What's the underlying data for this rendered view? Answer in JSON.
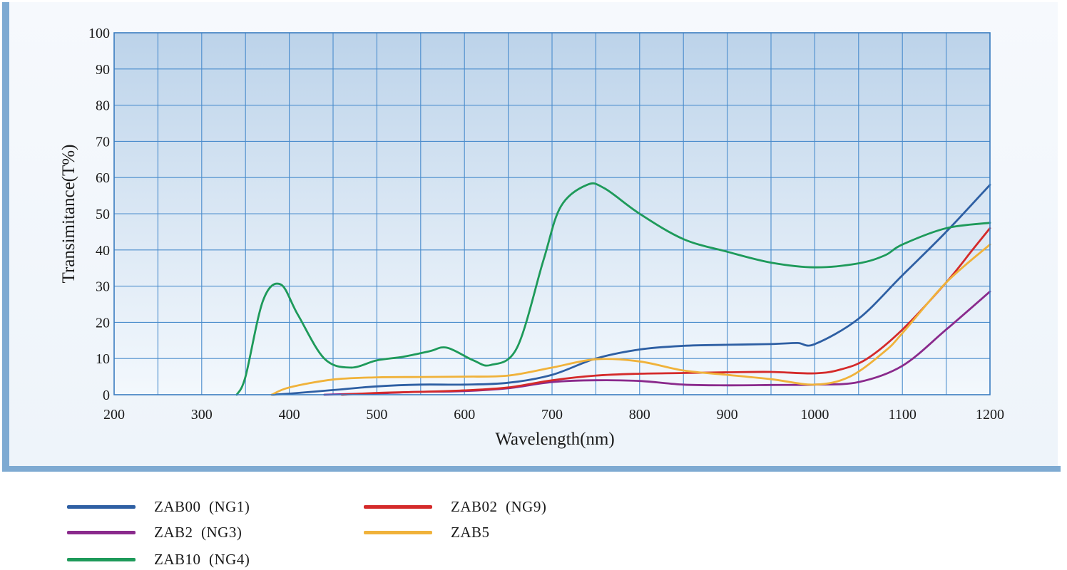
{
  "chart_data": {
    "type": "line",
    "title": "",
    "xlabel": "Wavelength(nm)",
    "ylabel": "Transimitance(T%)",
    "xlim": [
      200,
      1200
    ],
    "ylim": [
      0,
      100
    ],
    "x_ticks": [
      "200",
      "300",
      "400",
      "500",
      "600",
      "700",
      "800",
      "900",
      "1000",
      "1100",
      "1200"
    ],
    "y_ticks": [
      "0",
      "10",
      "20",
      "30",
      "40",
      "50",
      "60",
      "70",
      "80",
      "90",
      "100"
    ],
    "grid": true,
    "legend_position": "bottom",
    "series": [
      {
        "name": "ZAB00 (NG1)",
        "color": "#2e5fa3",
        "points": [
          [
            380,
            0
          ],
          [
            400,
            0.3
          ],
          [
            450,
            1.3
          ],
          [
            500,
            2.3
          ],
          [
            550,
            2.8
          ],
          [
            600,
            2.8
          ],
          [
            650,
            3.3
          ],
          [
            700,
            5.5
          ],
          [
            750,
            10
          ],
          [
            800,
            12.5
          ],
          [
            850,
            13.5
          ],
          [
            900,
            13.8
          ],
          [
            950,
            14
          ],
          [
            980,
            14.3
          ],
          [
            1000,
            14
          ],
          [
            1050,
            21
          ],
          [
            1100,
            33
          ],
          [
            1150,
            45
          ],
          [
            1200,
            58
          ]
        ]
      },
      {
        "name": "ZAB2 (NG3)",
        "color": "#8a2a8c",
        "points": [
          [
            440,
            0
          ],
          [
            500,
            0.4
          ],
          [
            550,
            0.8
          ],
          [
            600,
            1
          ],
          [
            650,
            1.8
          ],
          [
            700,
            3.5
          ],
          [
            750,
            4
          ],
          [
            800,
            3.8
          ],
          [
            850,
            2.8
          ],
          [
            900,
            2.6
          ],
          [
            950,
            2.7
          ],
          [
            1000,
            2.8
          ],
          [
            1050,
            3.5
          ],
          [
            1100,
            8
          ],
          [
            1150,
            18
          ],
          [
            1200,
            28.5
          ]
        ]
      },
      {
        "name": "ZAB10 (NG4)",
        "color": "#1e9a5a",
        "points": [
          [
            340,
            0
          ],
          [
            350,
            5
          ],
          [
            370,
            26
          ],
          [
            390,
            30.5
          ],
          [
            410,
            22
          ],
          [
            440,
            10
          ],
          [
            470,
            7.5
          ],
          [
            500,
            9.5
          ],
          [
            530,
            10.5
          ],
          [
            560,
            12
          ],
          [
            580,
            13
          ],
          [
            610,
            9.5
          ],
          [
            630,
            8.2
          ],
          [
            660,
            13
          ],
          [
            690,
            37
          ],
          [
            710,
            52
          ],
          [
            740,
            58
          ],
          [
            760,
            57
          ],
          [
            800,
            50
          ],
          [
            850,
            43
          ],
          [
            900,
            39.5
          ],
          [
            950,
            36.5
          ],
          [
            1000,
            35.2
          ],
          [
            1050,
            36.3
          ],
          [
            1080,
            38.5
          ],
          [
            1100,
            41.5
          ],
          [
            1150,
            46
          ],
          [
            1200,
            47.5
          ]
        ]
      },
      {
        "name": "ZAB02 (NG9)",
        "color": "#d42a2a",
        "points": [
          [
            460,
            0
          ],
          [
            500,
            0.5
          ],
          [
            550,
            0.8
          ],
          [
            600,
            1.2
          ],
          [
            650,
            2
          ],
          [
            700,
            4
          ],
          [
            750,
            5.3
          ],
          [
            800,
            5.8
          ],
          [
            850,
            6
          ],
          [
            900,
            6.2
          ],
          [
            950,
            6.3
          ],
          [
            1000,
            5.9
          ],
          [
            1030,
            7
          ],
          [
            1060,
            10
          ],
          [
            1100,
            18
          ],
          [
            1150,
            31
          ],
          [
            1180,
            40
          ],
          [
            1200,
            46
          ]
        ]
      },
      {
        "name": "ZAB5",
        "color": "#f0b23a",
        "points": [
          [
            380,
            0
          ],
          [
            400,
            2
          ],
          [
            450,
            4.2
          ],
          [
            500,
            4.8
          ],
          [
            550,
            4.9
          ],
          [
            600,
            5
          ],
          [
            650,
            5.3
          ],
          [
            700,
            7.5
          ],
          [
            750,
            9.8
          ],
          [
            800,
            9.2
          ],
          [
            850,
            6.7
          ],
          [
            900,
            5.5
          ],
          [
            950,
            4.3
          ],
          [
            1000,
            2.8
          ],
          [
            1040,
            5
          ],
          [
            1080,
            12
          ],
          [
            1100,
            17
          ],
          [
            1150,
            31
          ],
          [
            1200,
            41.5
          ]
        ]
      }
    ]
  },
  "legend": {
    "items": [
      {
        "label": "ZAB00  (NG1)",
        "color": "#2e5fa3"
      },
      {
        "label": "ZAB2  (NG3)",
        "color": "#8a2a8c"
      },
      {
        "label": "ZAB10  (NG4)",
        "color": "#1e9a5a"
      },
      {
        "label": "ZAB02  (NG9)",
        "color": "#d42a2a"
      },
      {
        "label": "ZAB5",
        "color": "#f0b23a"
      }
    ]
  }
}
